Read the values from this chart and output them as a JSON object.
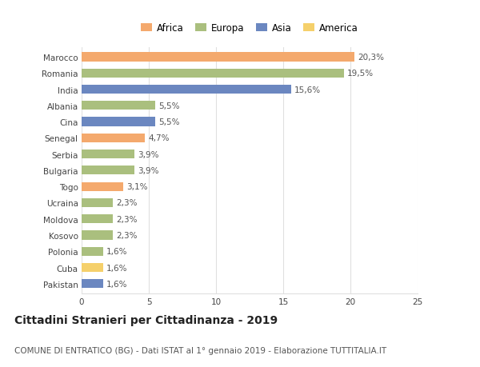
{
  "countries": [
    "Marocco",
    "Romania",
    "India",
    "Albania",
    "Cina",
    "Senegal",
    "Serbia",
    "Bulgaria",
    "Togo",
    "Ucraina",
    "Moldova",
    "Kosovo",
    "Polonia",
    "Cuba",
    "Pakistan"
  ],
  "values": [
    20.3,
    19.5,
    15.6,
    5.5,
    5.5,
    4.7,
    3.9,
    3.9,
    3.1,
    2.3,
    2.3,
    2.3,
    1.6,
    1.6,
    1.6
  ],
  "labels": [
    "20,3%",
    "19,5%",
    "15,6%",
    "5,5%",
    "5,5%",
    "4,7%",
    "3,9%",
    "3,9%",
    "3,1%",
    "2,3%",
    "2,3%",
    "2,3%",
    "1,6%",
    "1,6%",
    "1,6%"
  ],
  "continents": [
    "Africa",
    "Europa",
    "Asia",
    "Europa",
    "Asia",
    "Africa",
    "Europa",
    "Europa",
    "Africa",
    "Europa",
    "Europa",
    "Europa",
    "Europa",
    "America",
    "Asia"
  ],
  "continent_colors": {
    "Africa": "#F4A96D",
    "Europa": "#AABF7E",
    "Asia": "#6B87C0",
    "America": "#F5D06B"
  },
  "legend_order": [
    "Africa",
    "Europa",
    "Asia",
    "America"
  ],
  "title": "Cittadini Stranieri per Cittadinanza - 2019",
  "subtitle": "COMUNE DI ENTRATICO (BG) - Dati ISTAT al 1° gennaio 2019 - Elaborazione TUTTITALIA.IT",
  "xlim": [
    0,
    25
  ],
  "xticks": [
    0,
    5,
    10,
    15,
    20,
    25
  ],
  "background_color": "#ffffff",
  "grid_color": "#e0e0e0",
  "bar_height": 0.55,
  "title_fontsize": 10,
  "subtitle_fontsize": 7.5,
  "label_fontsize": 7.5,
  "tick_fontsize": 7.5,
  "legend_fontsize": 8.5
}
